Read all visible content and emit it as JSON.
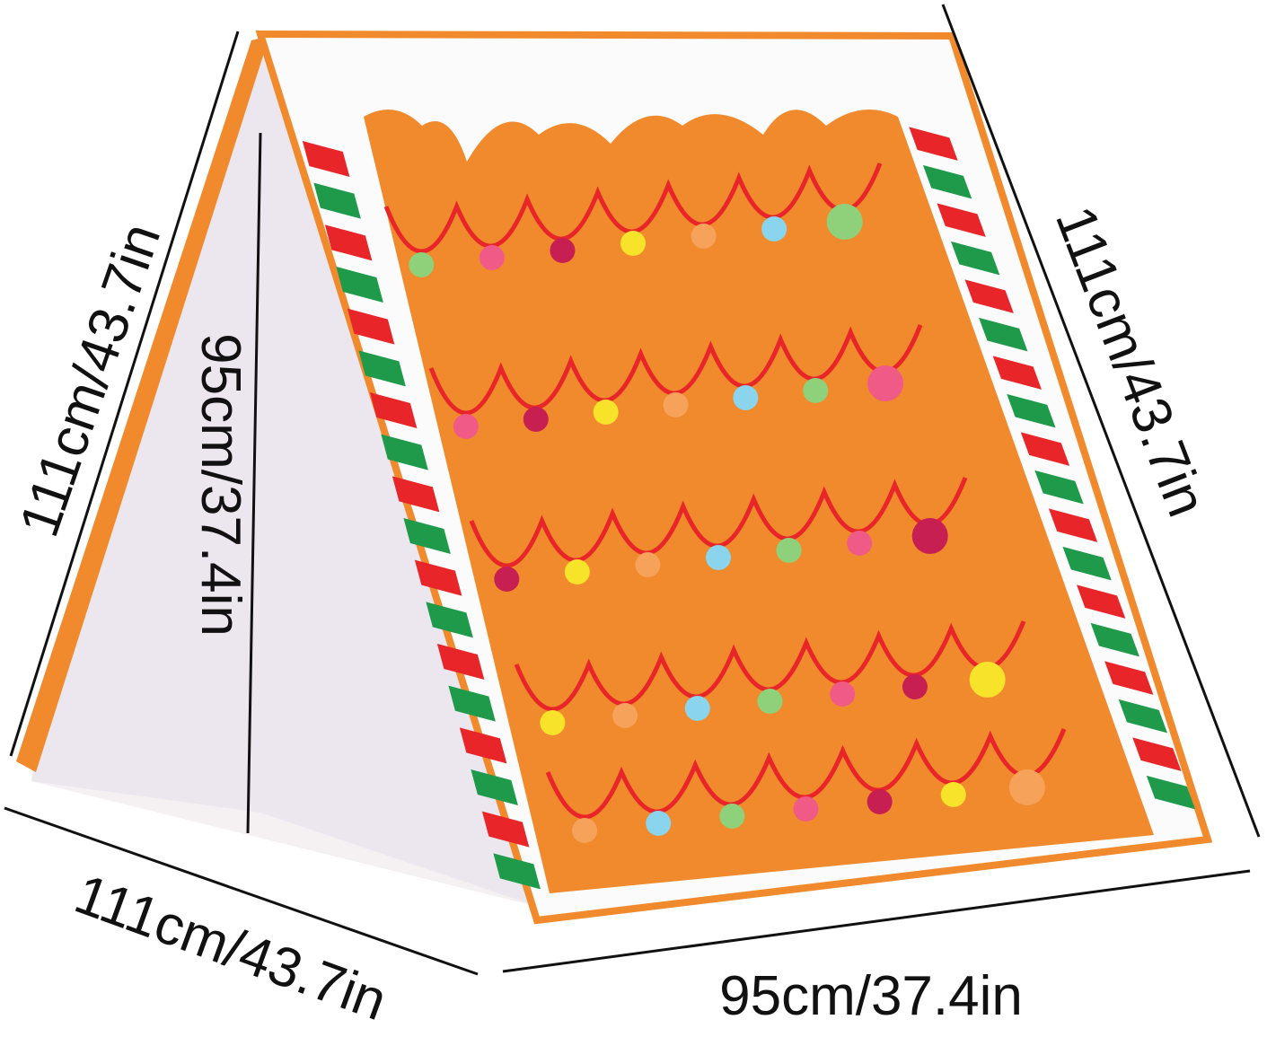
{
  "product": {
    "colors": {
      "orange": "#f08a2c",
      "white": "#fbfbfb",
      "red": "#e8262a",
      "green": "#1e9a4a",
      "inner": "#ece6ee"
    },
    "garland_dot_colors": [
      "#8fd17a",
      "#ef5a86",
      "#c81f52",
      "#f7e32a",
      "#f7a25a",
      "#8ad4ee"
    ]
  },
  "dimensions": {
    "left_edge": "111cm/43.7in",
    "inner_height": "95cm/37.4in",
    "right_edge": "111cm/43.7in",
    "depth": "111cm/43.7in",
    "width": "95cm/37.4in"
  }
}
